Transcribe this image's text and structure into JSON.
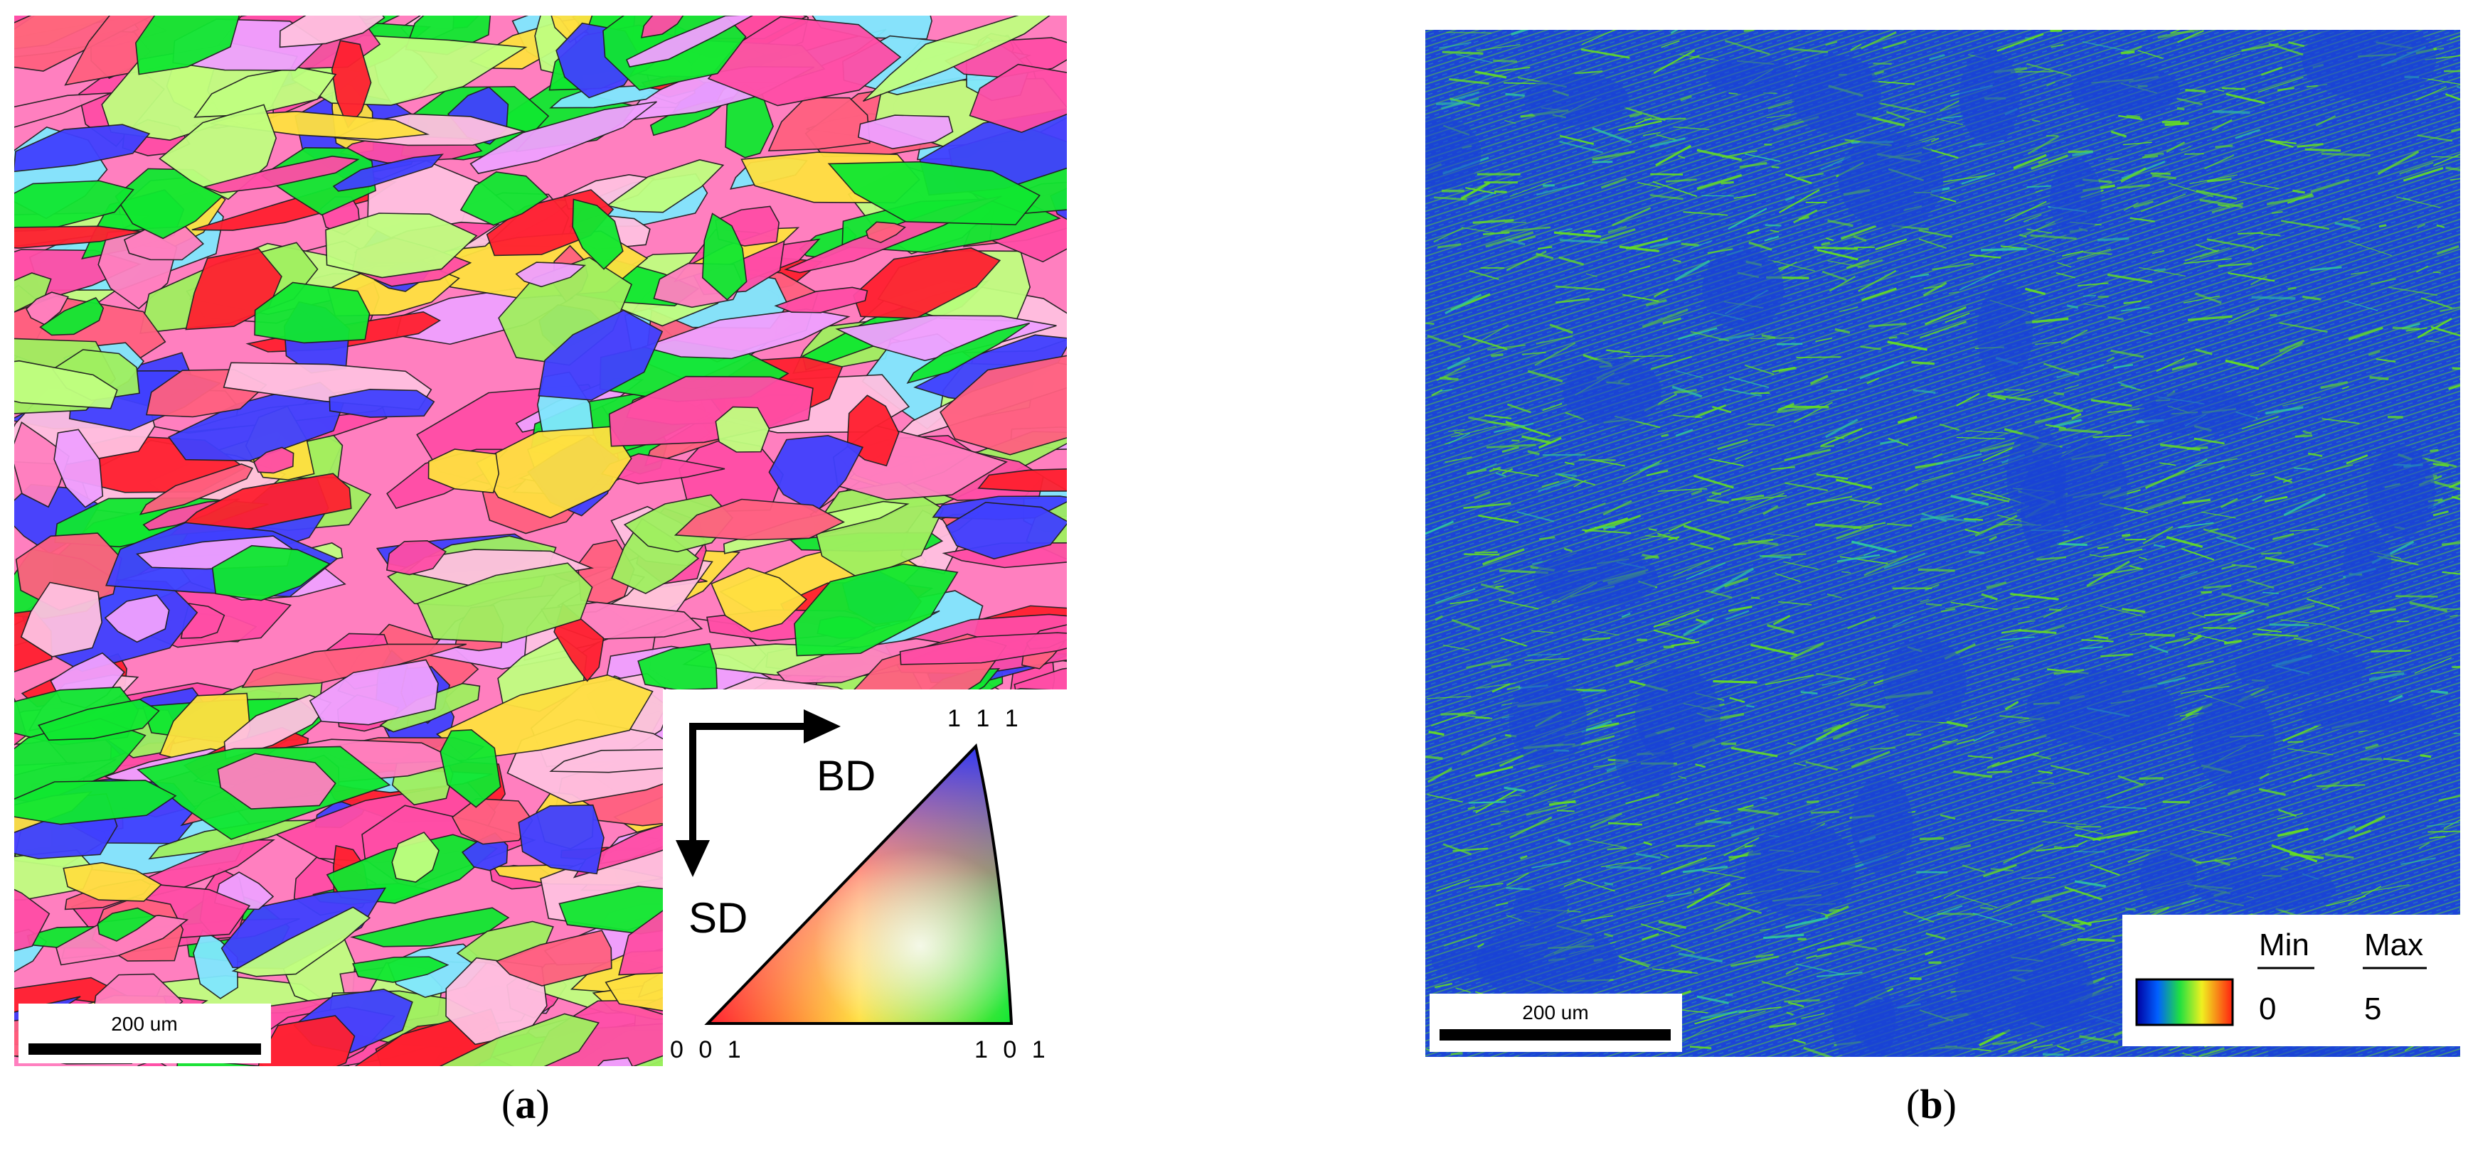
{
  "panel_a": {
    "scale_bar": "200 um",
    "axes": {
      "horizontal": "BD",
      "vertical": "SD"
    },
    "ipf_corners": {
      "top": "1 1 1",
      "bottom_left": "0 0 1",
      "bottom_right": "1 0 1"
    },
    "caption_letter": "a",
    "caption_open": "(",
    "caption_close": ")"
  },
  "panel_b": {
    "scale_bar": "200 um",
    "legend": {
      "min_label": "Min",
      "max_label": "Max",
      "min_value": "0",
      "max_value": "5"
    },
    "caption_letter": "b",
    "caption_open": "(",
    "caption_close": ")"
  },
  "colors": {
    "ipf_red": "#ff2030",
    "ipf_green": "#10e830",
    "ipf_blue": "#4040ff",
    "ipf_pink": "#ff4da6",
    "ipf_yellow": "#ffe040",
    "kam_blue": "#1a44d6",
    "kam_green": "#66e020"
  }
}
